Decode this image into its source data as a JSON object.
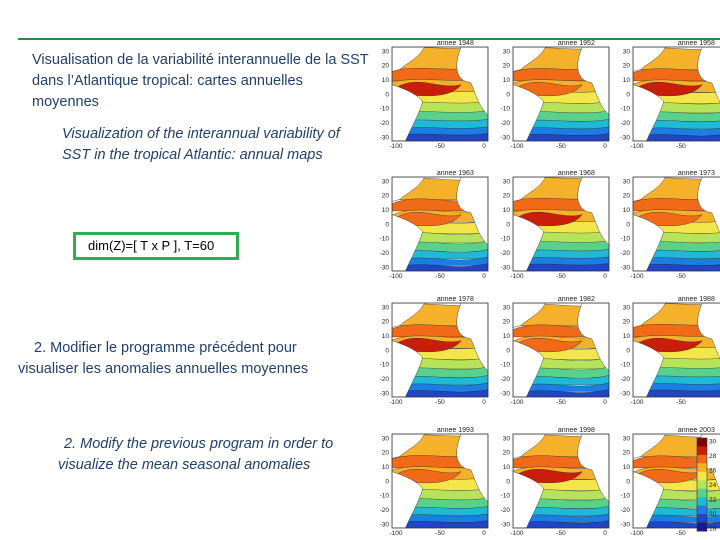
{
  "slide": {
    "title_fr": "Visualisation de la variabilité interannuelle de la SST dans l’Atlantique tropical: cartes annuelles moyennes",
    "title_en": "Visualization of the interannual variability of SST in the tropical Atlantic: annual maps",
    "dim_label": "dim(Z)=[ T x P ], T=60",
    "q2_fr": "2. Modifier le programme précédent pour visualiser les anomalies annuelles moyennes",
    "q2_en": "2. Modify the previous program in order to visualize the mean seasonal anomalies"
  },
  "maps": {
    "titles": [
      "annee 1948",
      "annee 1952",
      "annee 1958",
      "annee 1963",
      "annee 1968",
      "annee 1973",
      "annee 1978",
      "annee 1982",
      "annee 1988",
      "annee 1993",
      "annee 1998",
      "annee 2003"
    ],
    "y_ticks": [
      "30",
      "20",
      "10",
      "0",
      "-10",
      "-20",
      "-30"
    ],
    "x_ticks": [
      "-100",
      "-50",
      "0"
    ],
    "colorbar_ticks": [
      "30",
      "28",
      "26",
      "24",
      "22",
      "20",
      "18"
    ],
    "palette": [
      "#7f0000",
      "#c81e0a",
      "#f06a17",
      "#f6b12a",
      "#f3e64a",
      "#b6e35a",
      "#58d28a",
      "#1fb9d6",
      "#1b7fe1",
      "#2144c9",
      "#1a1a8f"
    ]
  }
}
